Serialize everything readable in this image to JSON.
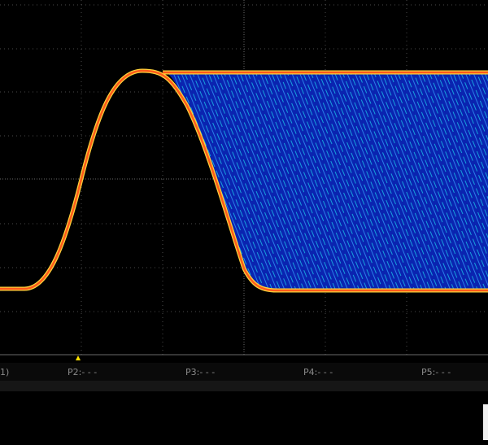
{
  "status_bar": {
    "items": [
      "1)",
      "P2:- - -",
      "P3:- - -",
      "P4:- - -",
      "P5:- - -"
    ]
  }
}
